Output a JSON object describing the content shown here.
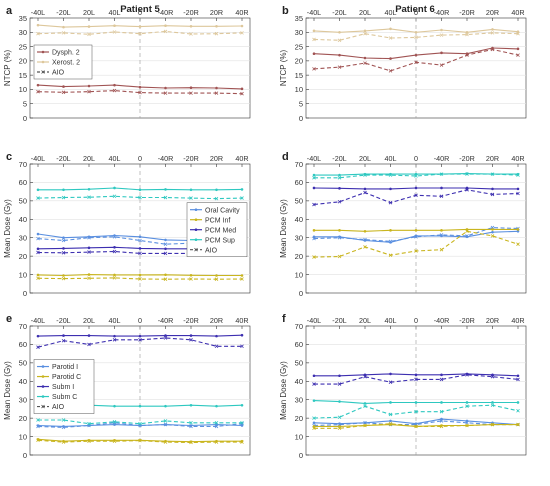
{
  "figure": {
    "columns": [
      "Patient 5",
      "Patient 6"
    ],
    "x_ticks": [
      "-40L",
      "-20L",
      "20L",
      "40L",
      "0",
      "-40R",
      "-20R",
      "20R",
      "40R"
    ]
  },
  "colors": {
    "dysph": "#a05353",
    "xerost": "#ddc79b",
    "oral_cavity": "#5a8fe0",
    "pcm_inf": "#c9b51e",
    "pcm_med": "#3d2fb0",
    "pcm_sup": "#2ec8c0",
    "parotid_i": "#5a8fe0",
    "parotid_c": "#c9b51e",
    "subm_i": "#3d2fb0",
    "subm_c": "#2ec8c0"
  },
  "chart_data": [
    {
      "panel": "a",
      "type": "line",
      "ylabel": "NTCP (%)",
      "ylim": [
        0,
        35
      ],
      "yticks": [
        0,
        5,
        10,
        15,
        20,
        25,
        30,
        35
      ],
      "legend": "top-left",
      "series": [
        {
          "name": "Dysph. 2",
          "color_key": "dysph",
          "values": [
            11.5,
            11.0,
            11.2,
            11.5,
            10.8,
            10.5,
            10.6,
            10.5,
            10.2
          ]
        },
        {
          "name": "Dysph. 2 AIO",
          "color_key": "dysph",
          "dashed": true,
          "values": [
            9.2,
            9.0,
            9.2,
            9.6,
            8.9,
            8.7,
            8.7,
            8.7,
            8.5
          ]
        },
        {
          "name": "Xerost. 2",
          "color_key": "xerost",
          "values": [
            32.5,
            31.8,
            32.0,
            32.3,
            32.0,
            32.3,
            32.1,
            32.1,
            32.2
          ]
        },
        {
          "name": "Xerost. 2 AIO",
          "color_key": "xerost",
          "dashed": true,
          "values": [
            29.5,
            29.8,
            29.3,
            30.1,
            29.5,
            30.3,
            29.4,
            29.5,
            29.8
          ]
        }
      ],
      "legend_entries": [
        {
          "label": "Dysph. 2",
          "color_key": "dysph",
          "dashed": false
        },
        {
          "label": "Xerost. 2",
          "color_key": "xerost",
          "dashed": false
        },
        {
          "label": "AIO",
          "color_key": "",
          "dashed": true
        }
      ]
    },
    {
      "panel": "b",
      "type": "line",
      "ylabel": "NTCP (%)",
      "ylim": [
        0,
        35
      ],
      "yticks": [
        0,
        5,
        10,
        15,
        20,
        25,
        30,
        35
      ],
      "series": [
        {
          "name": "Dysph. 2",
          "color_key": "dysph",
          "values": [
            22.5,
            22.0,
            21.0,
            20.8,
            22.0,
            22.8,
            22.5,
            24.5,
            24.2
          ]
        },
        {
          "name": "Dysph. 2 AIO",
          "color_key": "dysph",
          "dashed": true,
          "values": [
            17.2,
            17.8,
            19.2,
            16.5,
            19.5,
            18.5,
            22.0,
            24.0,
            22.0
          ]
        },
        {
          "name": "Xerost. 2",
          "color_key": "xerost",
          "values": [
            30.5,
            30.0,
            30.5,
            31.2,
            30.0,
            30.8,
            30.0,
            31.0,
            30.2
          ]
        },
        {
          "name": "Xerost. 2 AIO",
          "color_key": "xerost",
          "dashed": true,
          "values": [
            27.5,
            27.2,
            29.5,
            28.0,
            28.2,
            29.0,
            29.2,
            29.8,
            29.5
          ]
        }
      ]
    },
    {
      "panel": "c",
      "type": "line",
      "ylabel": "Mean Dose (Gy)",
      "ylim": [
        0,
        70
      ],
      "yticks": [
        0,
        10,
        20,
        30,
        40,
        50,
        60,
        70
      ],
      "legend": "middle-right",
      "series": [
        {
          "name": "Oral Cavity",
          "color_key": "oral_cavity",
          "values": [
            32.0,
            30.0,
            30.5,
            31.2,
            30.5,
            28.8,
            28.5,
            30.0,
            30.5
          ]
        },
        {
          "name": "Oral Cavity AIO",
          "color_key": "oral_cavity",
          "dashed": true,
          "values": [
            29.5,
            28.5,
            30.0,
            30.5,
            28.5,
            26.5,
            27.0,
            28.0,
            28.0
          ]
        },
        {
          "name": "PCM Inf",
          "color_key": "pcm_inf",
          "values": [
            9.8,
            9.5,
            10.0,
            9.8,
            9.8,
            9.9,
            9.6,
            9.5,
            9.5
          ]
        },
        {
          "name": "PCM Inf AIO",
          "color_key": "pcm_inf",
          "dashed": true,
          "values": [
            8.0,
            7.8,
            8.0,
            8.2,
            7.6,
            7.5,
            7.6,
            7.5,
            7.6
          ]
        },
        {
          "name": "PCM Med",
          "color_key": "pcm_med",
          "values": [
            24.0,
            24.2,
            24.5,
            24.8,
            24.2,
            24.0,
            24.0,
            24.0,
            24.2
          ]
        },
        {
          "name": "PCM Med AIO",
          "color_key": "pcm_med",
          "dashed": true,
          "values": [
            22.0,
            21.8,
            22.2,
            22.5,
            21.5,
            21.5,
            21.5,
            21.5,
            21.8
          ]
        },
        {
          "name": "PCM Sup",
          "color_key": "pcm_sup",
          "values": [
            56.0,
            56.0,
            56.3,
            57.0,
            56.0,
            56.2,
            56.0,
            56.0,
            56.2
          ]
        },
        {
          "name": "PCM Sup AIO",
          "color_key": "pcm_sup",
          "dashed": true,
          "values": [
            51.5,
            51.8,
            52.0,
            52.5,
            51.8,
            51.8,
            51.5,
            51.2,
            51.5
          ]
        }
      ],
      "legend_entries": [
        {
          "label": "Oral Cavity",
          "color_key": "oral_cavity",
          "dashed": false
        },
        {
          "label": "PCM Inf",
          "color_key": "pcm_inf",
          "dashed": false
        },
        {
          "label": "PCM Med",
          "color_key": "pcm_med",
          "dashed": false
        },
        {
          "label": "PCM Sup",
          "color_key": "pcm_sup",
          "dashed": false
        },
        {
          "label": "AIO",
          "color_key": "",
          "dashed": true
        }
      ]
    },
    {
      "panel": "d",
      "type": "line",
      "ylabel": "Mean Dose (Gy)",
      "ylim": [
        0,
        70
      ],
      "yticks": [
        0,
        10,
        20,
        30,
        40,
        50,
        60,
        70
      ],
      "series": [
        {
          "name": "Oral Cavity",
          "color_key": "oral_cavity",
          "values": [
            30.5,
            30.5,
            28.5,
            27.5,
            31.0,
            31.0,
            30.5,
            33.0,
            33.5
          ]
        },
        {
          "name": "Oral Cavity AIO",
          "color_key": "oral_cavity",
          "dashed": true,
          "values": [
            29.5,
            30.0,
            29.0,
            28.0,
            30.5,
            31.5,
            31.0,
            35.5,
            35.0
          ]
        },
        {
          "name": "PCM Inf",
          "color_key": "pcm_inf",
          "values": [
            34.0,
            34.0,
            33.5,
            34.0,
            34.0,
            34.0,
            34.5,
            34.5,
            34.5
          ]
        },
        {
          "name": "PCM Inf AIO",
          "color_key": "pcm_inf",
          "dashed": true,
          "values": [
            19.5,
            19.8,
            25.0,
            20.5,
            22.8,
            23.5,
            33.5,
            31.0,
            26.5
          ]
        },
        {
          "name": "PCM Med",
          "color_key": "pcm_med",
          "values": [
            57.0,
            56.8,
            56.5,
            56.5,
            57.0,
            57.0,
            57.0,
            56.5,
            56.5
          ]
        },
        {
          "name": "PCM Med AIO",
          "color_key": "pcm_med",
          "dashed": true,
          "values": [
            48.0,
            49.5,
            54.5,
            49.0,
            53.0,
            52.5,
            56.0,
            53.5,
            54.0
          ]
        },
        {
          "name": "PCM Sup",
          "color_key": "pcm_sup",
          "values": [
            64.0,
            64.0,
            64.5,
            64.5,
            64.5,
            64.5,
            64.8,
            64.5,
            64.5
          ]
        },
        {
          "name": "PCM Sup AIO",
          "color_key": "pcm_sup",
          "dashed": true,
          "values": [
            62.5,
            62.5,
            64.0,
            64.0,
            63.5,
            64.5,
            64.5,
            64.5,
            64.0
          ]
        }
      ]
    },
    {
      "panel": "e",
      "type": "line",
      "ylabel": "Mean Dose (Gy)",
      "ylim": [
        0,
        70
      ],
      "yticks": [
        0,
        10,
        20,
        30,
        40,
        50,
        60,
        70
      ],
      "legend": "middle-left",
      "series": [
        {
          "name": "Parotid I",
          "color_key": "parotid_i",
          "values": [
            16.0,
            15.5,
            16.0,
            16.5,
            16.0,
            16.5,
            16.0,
            16.5,
            16.0
          ]
        },
        {
          "name": "Parotid I AIO",
          "color_key": "parotid_i",
          "dashed": true,
          "values": [
            15.5,
            15.0,
            16.0,
            17.5,
            16.0,
            16.5,
            15.5,
            15.5,
            17.0
          ]
        },
        {
          "name": "Parotid C",
          "color_key": "parotid_c",
          "values": [
            8.5,
            7.5,
            8.0,
            8.0,
            8.0,
            7.5,
            7.2,
            7.5,
            7.5
          ]
        },
        {
          "name": "Parotid C AIO",
          "color_key": "parotid_c",
          "dashed": true,
          "values": [
            8.0,
            7.0,
            7.5,
            7.5,
            7.8,
            7.0,
            6.8,
            7.0,
            7.0
          ]
        },
        {
          "name": "Subm I",
          "color_key": "subm_i",
          "values": [
            64.5,
            64.8,
            64.8,
            64.5,
            64.5,
            64.8,
            64.8,
            64.5,
            65.0
          ]
        },
        {
          "name": "Subm I AIO",
          "color_key": "subm_i",
          "dashed": true,
          "values": [
            58.5,
            62.0,
            60.0,
            62.5,
            62.5,
            63.5,
            62.5,
            59.0,
            59.0
          ]
        },
        {
          "name": "Subm C",
          "color_key": "subm_c",
          "values": [
            28.0,
            27.0,
            27.0,
            26.5,
            26.5,
            26.5,
            27.0,
            26.5,
            27.0
          ]
        },
        {
          "name": "Subm C AIO",
          "color_key": "subm_c",
          "dashed": true,
          "values": [
            19.0,
            19.0,
            17.0,
            18.0,
            17.0,
            18.5,
            17.5,
            17.5,
            17.5
          ]
        }
      ],
      "legend_entries": [
        {
          "label": "Parotid I",
          "color_key": "parotid_i",
          "dashed": false
        },
        {
          "label": "Parotid C",
          "color_key": "parotid_c",
          "dashed": false
        },
        {
          "label": "Subm I",
          "color_key": "subm_i",
          "dashed": false
        },
        {
          "label": "Subm C",
          "color_key": "subm_c",
          "dashed": false
        },
        {
          "label": "AIO",
          "color_key": "",
          "dashed": true
        }
      ]
    },
    {
      "panel": "f",
      "type": "line",
      "ylabel": "Mean Dose (Gy)",
      "ylim": [
        0,
        70
      ],
      "yticks": [
        0,
        10,
        20,
        30,
        40,
        50,
        60,
        70
      ],
      "series": [
        {
          "name": "Parotid I",
          "color_key": "parotid_i",
          "values": [
            17.5,
            17.0,
            17.5,
            18.5,
            17.0,
            19.5,
            18.5,
            17.5,
            16.5
          ]
        },
        {
          "name": "Parotid I AIO",
          "color_key": "parotid_i",
          "dashed": true,
          "values": [
            16.0,
            16.5,
            17.5,
            16.5,
            16.5,
            18.5,
            17.5,
            16.5,
            16.5
          ]
        },
        {
          "name": "Parotid C",
          "color_key": "parotid_c",
          "values": [
            15.5,
            15.5,
            16.0,
            16.5,
            15.5,
            16.0,
            16.0,
            16.5,
            16.5
          ]
        },
        {
          "name": "Parotid C AIO",
          "color_key": "parotid_c",
          "dashed": true,
          "values": [
            14.5,
            14.5,
            16.0,
            17.0,
            15.5,
            15.5,
            16.0,
            16.5,
            16.5
          ]
        },
        {
          "name": "Subm I",
          "color_key": "subm_i",
          "values": [
            43.0,
            43.0,
            43.5,
            44.0,
            43.5,
            43.5,
            44.0,
            43.5,
            43.0
          ]
        },
        {
          "name": "Subm I AIO",
          "color_key": "subm_i",
          "dashed": true,
          "values": [
            38.5,
            38.5,
            42.5,
            39.5,
            41.0,
            41.0,
            43.5,
            42.5,
            41.0
          ]
        },
        {
          "name": "Subm C",
          "color_key": "subm_c",
          "values": [
            29.5,
            29.0,
            28.0,
            28.5,
            28.5,
            28.5,
            28.5,
            28.5,
            28.5
          ]
        },
        {
          "name": "Subm C AIO",
          "color_key": "subm_c",
          "dashed": true,
          "values": [
            20.0,
            20.5,
            26.5,
            22.0,
            23.5,
            23.5,
            26.5,
            27.0,
            24.0
          ]
        }
      ]
    }
  ]
}
